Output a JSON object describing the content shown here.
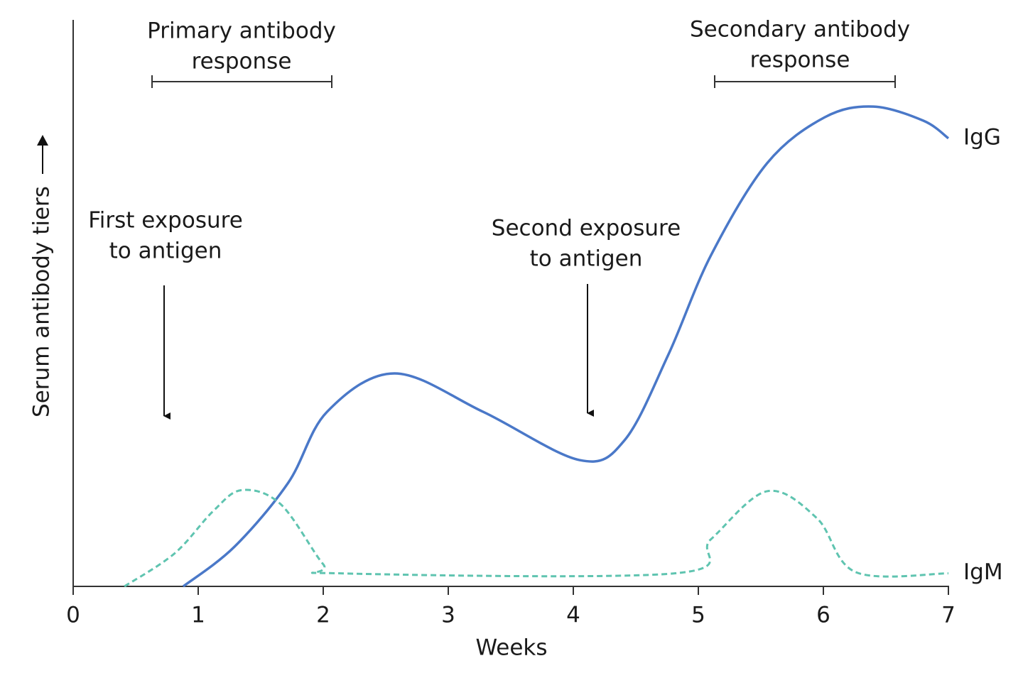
{
  "chart_data": {
    "type": "line",
    "x_label": "Weeks",
    "y_label": "Serum antibody tiers",
    "xlim": [
      0,
      7
    ],
    "xticks": [
      0,
      1,
      2,
      3,
      4,
      5,
      6,
      7
    ],
    "ylim": [
      0,
      100
    ],
    "annotations": {
      "primary": [
        "Primary antibody",
        "response"
      ],
      "secondary": [
        "Secondary antibody",
        "response"
      ],
      "first_exposure": [
        "First exposure",
        "to antigen"
      ],
      "second_exposure": [
        "Second exposure",
        "to antigen"
      ]
    },
    "series": [
      {
        "name": "IgG",
        "color": "#4a78c8",
        "dashed": false,
        "x": [
          0.88,
          1.29,
          1.72,
          2.03,
          2.57,
          3.28,
          4.05,
          4.41,
          4.76,
          5.1,
          5.55,
          6.01,
          6.4,
          6.8,
          7
        ],
        "values": [
          0,
          7,
          18.3,
          30.8,
          37.6,
          30.8,
          22.3,
          25.8,
          40.9,
          58.4,
          74.7,
          82.8,
          84.7,
          82.2,
          79.1
        ]
      },
      {
        "name": "IgM",
        "color": "#5fc4b0",
        "dashed": true,
        "x": [
          0.41,
          0.81,
          1.12,
          1.35,
          1.66,
          2.0,
          2.14,
          4.81,
          5.1,
          5.55,
          5.95,
          6.26,
          7
        ],
        "values": [
          0,
          5.8,
          13.3,
          17.0,
          14.5,
          3.9,
          2.3,
          2.3,
          8.3,
          16.8,
          12,
          2.5,
          2.3
        ]
      }
    ]
  }
}
